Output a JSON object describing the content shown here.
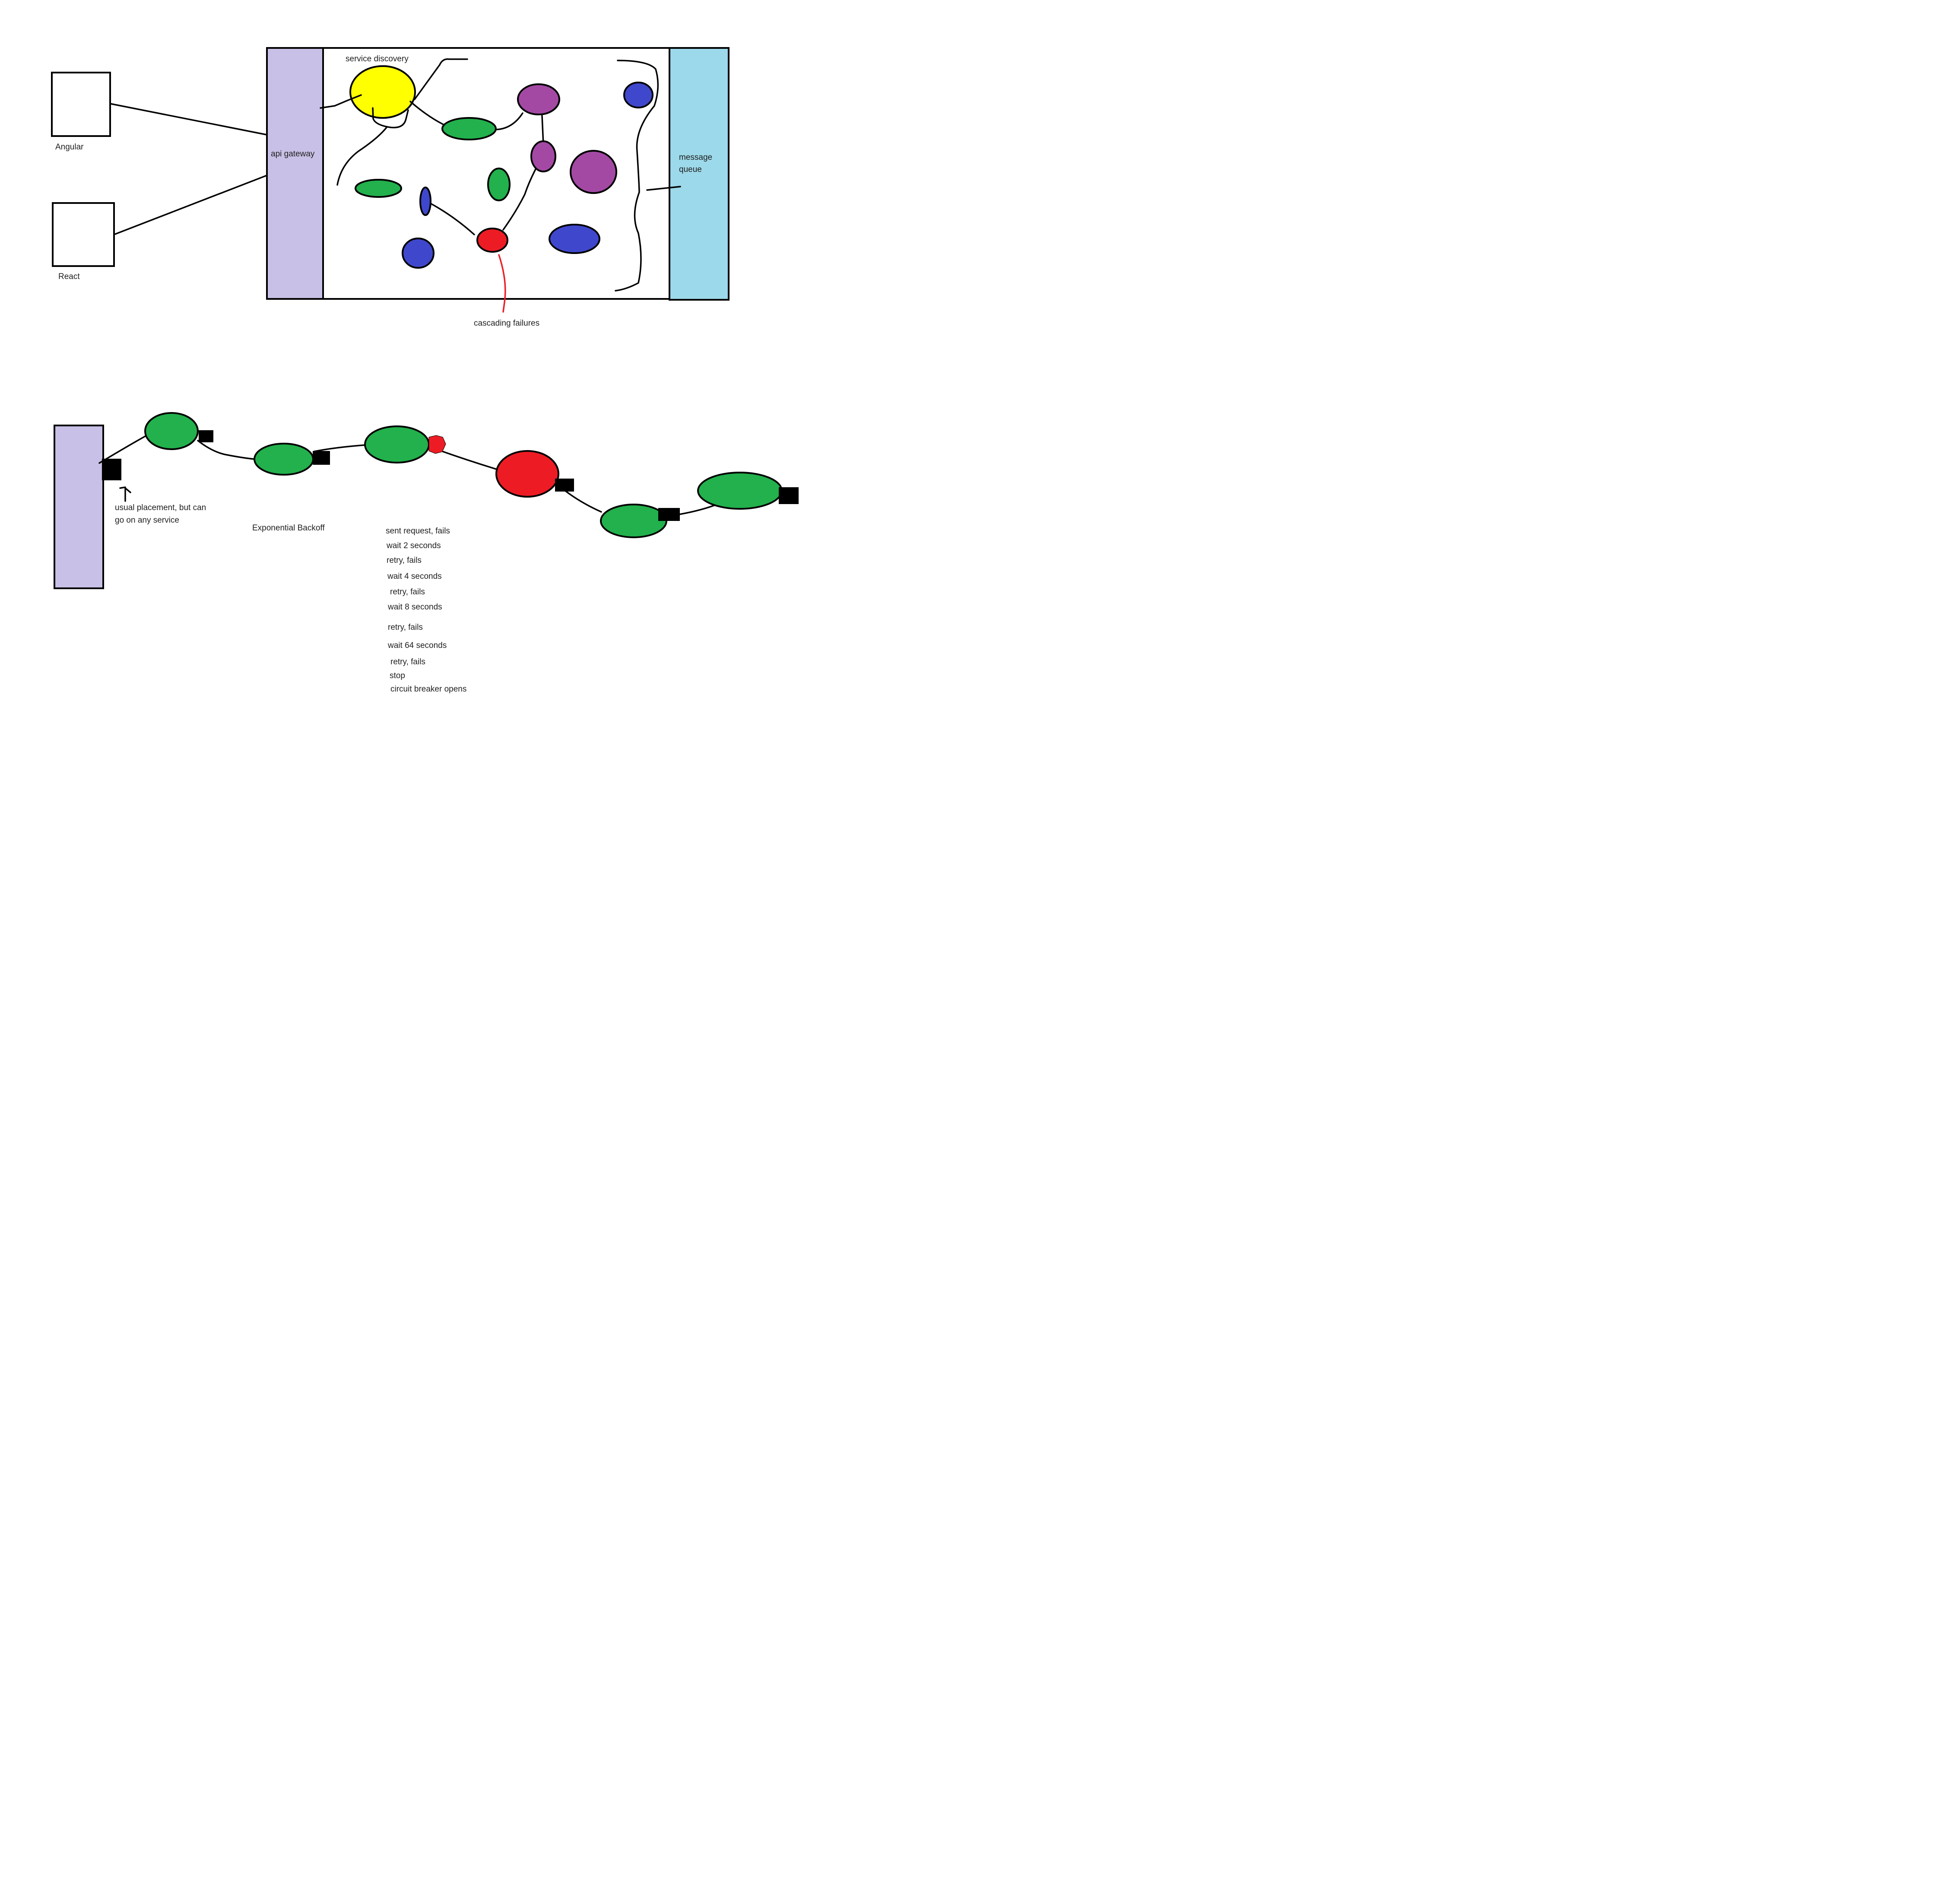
{
  "colors": {
    "gateway": "#c8c0e6",
    "queue": "#9cd9ea",
    "discovery": "#ffff00",
    "green": "#22b14c",
    "purple": "#a349a4",
    "blue": "#3f48cc",
    "red": "#ed1c24",
    "breaker": "#000000"
  },
  "clients": {
    "angular_label": "Angular",
    "react_label": "React"
  },
  "top_diagram": {
    "gateway_label": "api gateway",
    "queue_label_line1": "message",
    "queue_label_line2": "queue",
    "discovery_label": "service discovery",
    "cascading_label": "cascading failures"
  },
  "circuit_diagram": {
    "placement_note_line1": "usual placement, but can",
    "placement_note_line2": "go on any service",
    "backoff_title": "Exponential Backoff",
    "backoff_steps": [
      "sent request, fails",
      "wait 2 seconds",
      "retry, fails",
      "wait 4 seconds",
      "retry, fails",
      "wait 8 seconds",
      "retry, fails",
      "wait 64 seconds",
      "retry, fails",
      "stop",
      "circuit breaker opens"
    ]
  }
}
